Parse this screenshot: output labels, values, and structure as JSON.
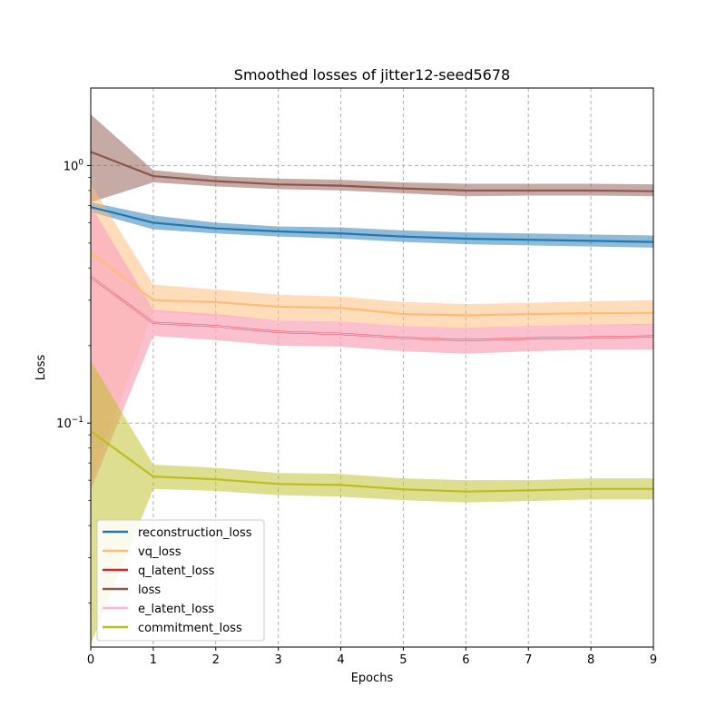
{
  "chart_data": {
    "type": "line",
    "title": "Smoothed losses of jitter12-seed5678",
    "xlabel": "Epochs",
    "ylabel": "Loss",
    "yscale": "log",
    "xlim": [
      0,
      9
    ],
    "ylim": [
      0.0135,
      2.0
    ],
    "grid": true,
    "legend_position": "lower-left",
    "x": [
      0,
      1,
      2,
      3,
      4,
      5,
      6,
      7,
      8,
      9
    ],
    "x_ticks": [
      "0",
      "1",
      "2",
      "3",
      "4",
      "5",
      "6",
      "7",
      "8",
      "9"
    ],
    "y_ticks": [
      {
        "value": 0.1,
        "base": "10",
        "exp": "−1"
      },
      {
        "value": 1.0,
        "base": "10",
        "exp": "0"
      }
    ],
    "series": [
      {
        "name": "reconstruction_loss",
        "color": "#1f77b4",
        "band_color": "#1f77b4",
        "values": [
          0.69,
          0.6,
          0.57,
          0.555,
          0.545,
          0.53,
          0.52,
          0.515,
          0.51,
          0.505
        ],
        "upper": [
          0.72,
          0.64,
          0.6,
          0.58,
          0.575,
          0.56,
          0.55,
          0.545,
          0.54,
          0.535
        ],
        "lower": [
          0.66,
          0.565,
          0.545,
          0.53,
          0.52,
          0.505,
          0.495,
          0.49,
          0.485,
          0.48
        ]
      },
      {
        "name": "vq_loss",
        "color": "#ffbb78",
        "band_color": "#ffbb78",
        "values": [
          0.46,
          0.3,
          0.295,
          0.283,
          0.28,
          0.265,
          0.262,
          0.265,
          0.267,
          0.268
        ],
        "upper": [
          0.85,
          0.345,
          0.33,
          0.315,
          0.31,
          0.295,
          0.29,
          0.293,
          0.297,
          0.3
        ],
        "lower": [
          0.06,
          0.27,
          0.26,
          0.25,
          0.248,
          0.238,
          0.233,
          0.237,
          0.24,
          0.24
        ]
      },
      {
        "name": "q_latent_loss",
        "color": "#d62728",
        "band_color": "#ff9896",
        "values": [
          0.37,
          0.245,
          0.238,
          0.226,
          0.222,
          0.214,
          0.21,
          0.213,
          0.215,
          0.217
        ],
        "upper": [
          0.7,
          0.275,
          0.265,
          0.25,
          0.248,
          0.238,
          0.234,
          0.238,
          0.241,
          0.243
        ],
        "lower": [
          0.055,
          0.218,
          0.21,
          0.2,
          0.198,
          0.19,
          0.186,
          0.19,
          0.193,
          0.193
        ]
      },
      {
        "name": "loss",
        "color": "#8c564b",
        "band_color": "#8c564b",
        "values": [
          1.13,
          0.91,
          0.87,
          0.845,
          0.835,
          0.815,
          0.8,
          0.8,
          0.8,
          0.795
        ],
        "upper": [
          1.58,
          0.96,
          0.91,
          0.89,
          0.88,
          0.86,
          0.85,
          0.85,
          0.85,
          0.845
        ],
        "lower": [
          0.72,
          0.86,
          0.83,
          0.81,
          0.8,
          0.78,
          0.76,
          0.765,
          0.765,
          0.76
        ]
      },
      {
        "name": "e_latent_loss",
        "color": "#f7b6d2",
        "band_color": "#f7b6d2",
        "values": [
          0.37,
          0.245,
          0.238,
          0.226,
          0.222,
          0.214,
          0.21,
          0.213,
          0.215,
          0.217
        ],
        "upper": [
          0.7,
          0.275,
          0.265,
          0.25,
          0.248,
          0.238,
          0.234,
          0.238,
          0.241,
          0.243
        ],
        "lower": [
          0.055,
          0.218,
          0.21,
          0.2,
          0.198,
          0.19,
          0.186,
          0.19,
          0.193,
          0.193
        ]
      },
      {
        "name": "commitment_loss",
        "color": "#bcbd22",
        "band_color": "#bcbd22",
        "values": [
          0.093,
          0.062,
          0.0605,
          0.058,
          0.0575,
          0.0553,
          0.0542,
          0.0548,
          0.0555,
          0.0555
        ],
        "upper": [
          0.175,
          0.069,
          0.067,
          0.064,
          0.0635,
          0.061,
          0.06,
          0.06,
          0.061,
          0.061
        ],
        "lower": [
          0.0138,
          0.0555,
          0.0545,
          0.0525,
          0.0518,
          0.0502,
          0.0492,
          0.0498,
          0.0505,
          0.0505
        ]
      }
    ],
    "draw_order": [
      "loss",
      "reconstruction_loss",
      "vq_loss",
      "q_latent_loss",
      "e_latent_loss",
      "commitment_loss"
    ]
  }
}
